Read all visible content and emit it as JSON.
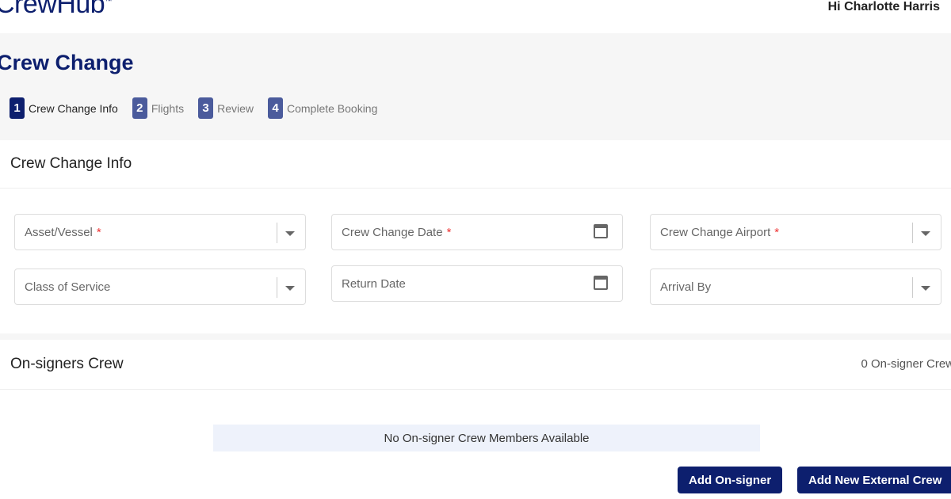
{
  "header": {
    "logo": "CrewHub",
    "logo_mark": "™",
    "greeting": "Hi Charlotte Harris"
  },
  "page": {
    "title": "Crew Change"
  },
  "steps": [
    {
      "num": "1",
      "label": "Crew Change Info",
      "active": true
    },
    {
      "num": "2",
      "label": "Flights"
    },
    {
      "num": "3",
      "label": "Review"
    },
    {
      "num": "4",
      "label": "Complete Booking"
    }
  ],
  "info": {
    "heading": "Crew Change Info",
    "fields": {
      "vessel": "Asset/Vessel",
      "date": "Crew Change Date",
      "airport": "Crew Change Airport",
      "class": "Class of Service",
      "return": "Return Date",
      "arrival": "Arrival By"
    },
    "required": "*"
  },
  "onsigners": {
    "heading": "On-signers Crew",
    "count": "0 On-signer Crew",
    "empty": "No On-signer Crew Members Available",
    "add": "Add On-signer",
    "add_external": "Add New External Crew"
  },
  "colors": {
    "brand": "#0d1f6e",
    "step_inactive": "#4b5b9c",
    "required": "#ee3333"
  }
}
